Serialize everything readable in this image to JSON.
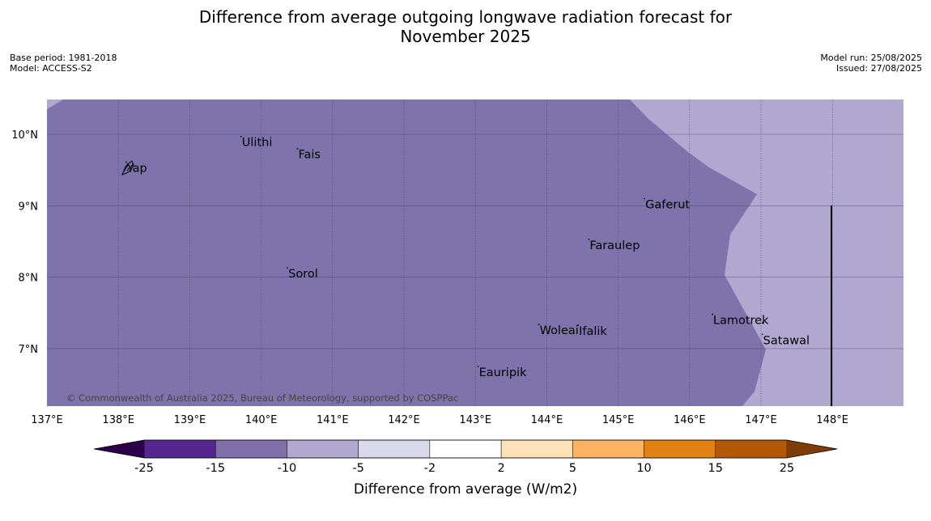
{
  "title_line1": "Difference from average outgoing longwave radiation forecast for",
  "title_line2": "November 2025",
  "base_period": "Base period: 1981-2018",
  "model": "Model: ACCESS-S2",
  "model_run": "Model run: 25/08/2025",
  "issued": "Issued: 27/08/2025",
  "copyright": "© Commonwealth of Australia 2025, Bureau of Meteorology, supported by COSPPac",
  "lon_labels": [
    "137°E",
    "138°E",
    "139°E",
    "140°E",
    "141°E",
    "142°E",
    "143°E",
    "144°E",
    "145°E",
    "146°E",
    "147°E",
    "148°E"
  ],
  "lat_labels": [
    "10°N",
    "9°N",
    "8°N",
    "7°N"
  ],
  "places": [
    {
      "name": "Ulithi",
      "lon": 139.73,
      "lat": 9.89
    },
    {
      "name": "Fais",
      "lon": 140.52,
      "lat": 9.72
    },
    {
      "name": "Yap",
      "lon": 138.12,
      "lat": 9.53
    },
    {
      "name": "Gaferut",
      "lon": 145.38,
      "lat": 9.02
    },
    {
      "name": "Faraulep",
      "lon": 144.6,
      "lat": 8.45
    },
    {
      "name": "Sorol",
      "lon": 140.38,
      "lat": 8.05
    },
    {
      "name": "Lamotrek",
      "lon": 146.33,
      "lat": 7.4
    },
    {
      "name": "Woleai",
      "lon": 143.9,
      "lat": 7.26
    },
    {
      "name": "Ifalik",
      "lon": 144.45,
      "lat": 7.25
    },
    {
      "name": "Satawal",
      "lon": 147.03,
      "lat": 7.12
    },
    {
      "name": "Eauripik",
      "lon": 143.05,
      "lat": 6.67
    }
  ],
  "colorbar": {
    "ticks": [
      "-25",
      "-15",
      "-10",
      "-5",
      "-2",
      "2",
      "5",
      "10",
      "15",
      "25"
    ],
    "colors": [
      "#54278f",
      "#7f6fab",
      "#b0a8d1",
      "#d9d9eb",
      "#ffffff",
      "#fee1b6",
      "#fdb462",
      "#e08214",
      "#b35806"
    ],
    "under_color": "#2d004b",
    "over_color": "#7f3b08",
    "label": "Difference from average (W/m2)"
  },
  "field_colors": {
    "west": "#7f73ab",
    "east": "#b0a8d1"
  }
}
